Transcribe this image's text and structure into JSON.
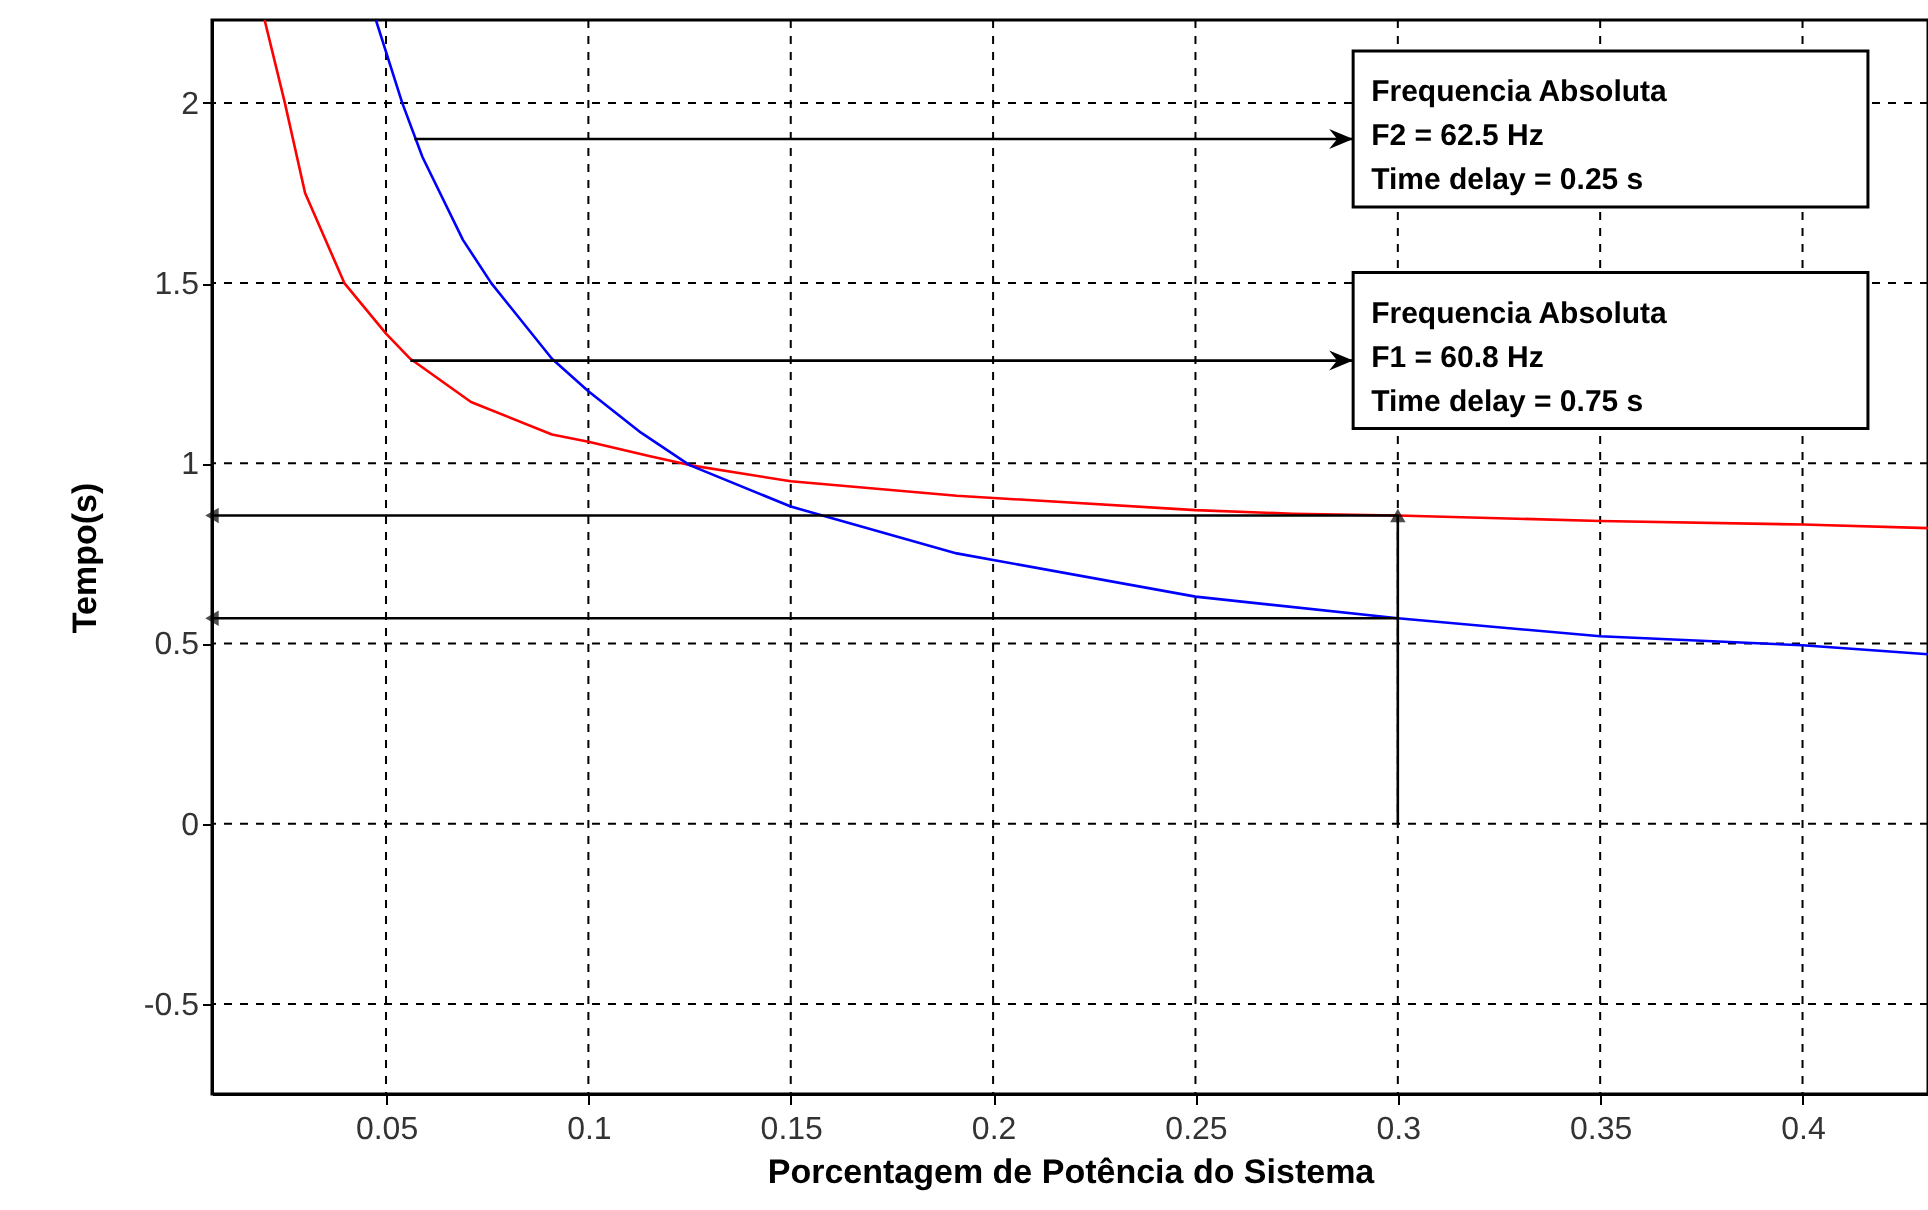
{
  "chart_data": {
    "type": "line",
    "xlabel": "Porcentagem de Potência do Sistema",
    "ylabel": "Tempo(s)",
    "xlim": [
      0.007,
      0.431
    ],
    "xticks": [
      0.05,
      0.1,
      0.15,
      0.2,
      0.25,
      0.3,
      0.35,
      0.4
    ],
    "ylim": [
      -0.75,
      2.23
    ],
    "yticks": [
      -0.5,
      0,
      0.5,
      1,
      1.5,
      2
    ],
    "grid": true,
    "line_style": "solid",
    "series": [
      {
        "color": "#ff0000",
        "x": [
          0.02,
          0.025,
          0.03,
          0.0397,
          0.05,
          0.056,
          0.071,
          0.091,
          0.1,
          0.115,
          0.125,
          0.15,
          0.191,
          0.25,
          0.274,
          0.3,
          0.35,
          0.4,
          0.431
        ],
        "values": [
          2.23,
          2.0,
          1.75,
          1.5,
          1.36,
          1.29,
          1.17,
          1.08,
          1.06,
          1.02,
          0.995,
          0.95,
          0.91,
          0.87,
          0.86,
          0.855,
          0.84,
          0.83,
          0.82
        ]
      },
      {
        "color": "#0000ff",
        "x": [
          0.0475,
          0.054,
          0.059,
          0.069,
          0.076,
          0.091,
          0.1,
          0.113,
          0.125,
          0.15,
          0.191,
          0.25,
          0.3,
          0.35,
          0.4,
          0.431
        ],
        "values": [
          2.23,
          2.0,
          1.85,
          1.62,
          1.5,
          1.29,
          1.2,
          1.085,
          0.995,
          0.88,
          0.75,
          0.63,
          0.57,
          0.52,
          0.495,
          0.47
        ]
      },
      {
        "color": "#000000",
        "marker": "triangle",
        "x": [
          0.007,
          0.3
        ],
        "values": [
          0.855,
          0.855
        ]
      },
      {
        "color": "#000000",
        "x": [
          0.3,
          0.3
        ],
        "values": [
          0.855,
          0
        ]
      },
      {
        "color": "#000000",
        "marker": "triangle",
        "x": [
          0.007,
          0.3
        ],
        "values": [
          0.57,
          0.57
        ]
      }
    ],
    "annotations": [
      {
        "text": "Frequencia Absoluta\nF2 = 62.5 Hz\nTime delay = 0.25 s",
        "x": 0.057,
        "y": 1.9
      },
      {
        "text": "Frequencia Absoluta\nF1 = 60.8 Hz\nTime delay = 0.75 s",
        "x": 0.056,
        "y": 1.285
      }
    ]
  }
}
